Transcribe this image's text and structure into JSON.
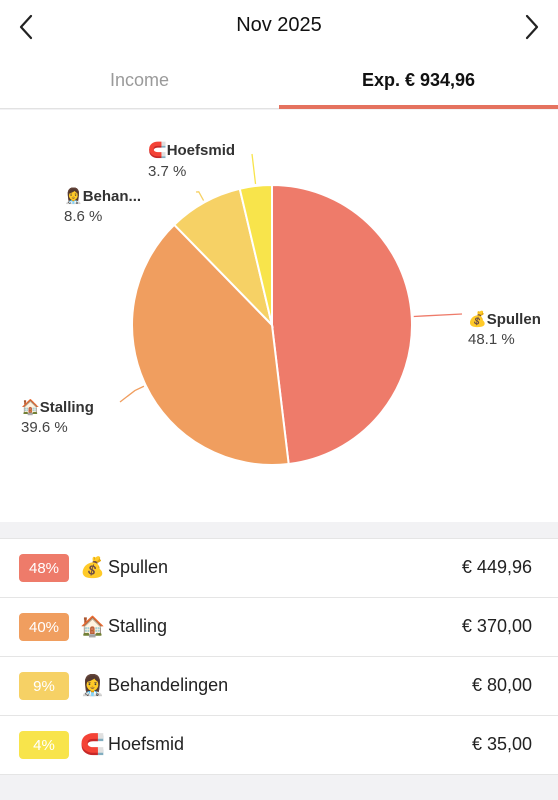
{
  "header": {
    "title": "Nov 2025",
    "prev_icon": "chevron-left-icon",
    "next_icon": "chevron-right-icon"
  },
  "tabs": [
    {
      "label": "Income",
      "active": false
    },
    {
      "label": "Exp. € 934,96",
      "active": true
    }
  ],
  "colors": {
    "accent": "#e5725f",
    "spullen": "#ee7b6a",
    "stalling": "#f09e5f",
    "behandelingen": "#f6d165",
    "hoefsmid": "#f8e44b"
  },
  "chart_data": {
    "type": "pie",
    "slices": [
      {
        "label": "Spullen",
        "value": 48.1,
        "value_label": "48.1 %",
        "icon": "💰",
        "color": "#ee7b6a"
      },
      {
        "label": "Stalling",
        "value": 39.6,
        "value_label": "39.6 %",
        "icon": "🏠",
        "color": "#f09e5f"
      },
      {
        "label": "Behan...",
        "value": 8.6,
        "value_label": "8.6 %",
        "icon": "👩‍⚕️",
        "color": "#f6d165"
      },
      {
        "label": "Hoefsmid",
        "value": 3.7,
        "value_label": "3.7 %",
        "icon": "🧲",
        "color": "#f8e44b"
      }
    ]
  },
  "list": [
    {
      "pct": "48%",
      "icon": "💰",
      "name": "Spullen",
      "amount": "€ 449,96",
      "color": "#ee7b6a"
    },
    {
      "pct": "40%",
      "icon": "🏠",
      "name": "Stalling",
      "amount": "€ 370,00",
      "color": "#f09e5f"
    },
    {
      "pct": "9%",
      "icon": "👩‍⚕️",
      "name": "Behandelingen",
      "amount": "€ 80,00",
      "color": "#f6d165"
    },
    {
      "pct": "4%",
      "icon": "🧲",
      "name": "Hoefsmid",
      "amount": "€ 35,00",
      "color": "#f8e44b"
    }
  ]
}
